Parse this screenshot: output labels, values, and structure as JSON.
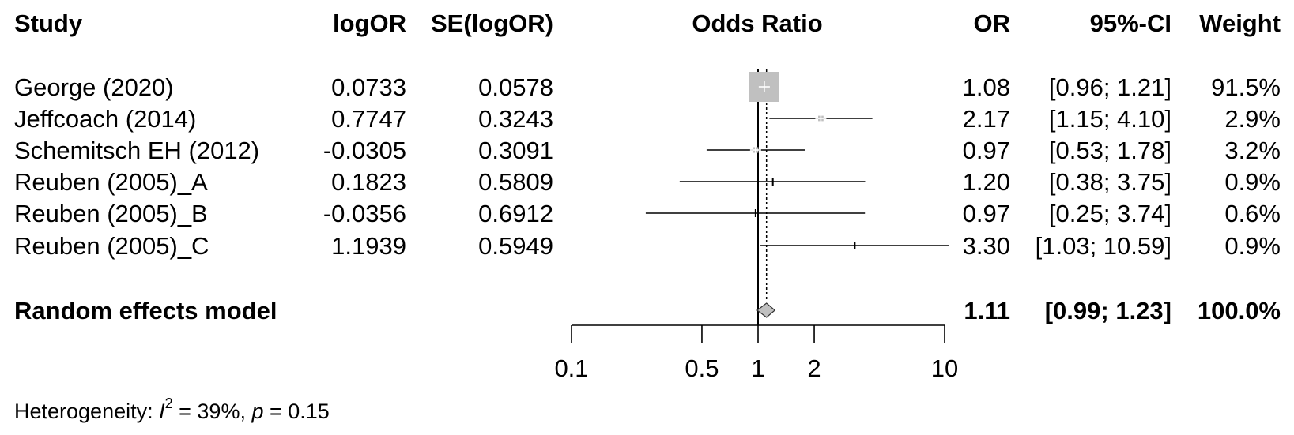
{
  "chart_data": {
    "type": "forest",
    "headers": {
      "study": "Study",
      "logor": "logOR",
      "se": "SE(logOR)",
      "plot": "Odds Ratio",
      "or": "OR",
      "ci": "95%-CI",
      "weight": "Weight"
    },
    "studies": [
      {
        "name": "George (2020)",
        "logor": "0.0733",
        "se": "0.0578",
        "or": "1.08",
        "ci": "[0.96;  1.21]",
        "weight": "91.5%",
        "or_value": 1.08,
        "lower": 0.96,
        "upper": 1.21,
        "weight_value": 91.5
      },
      {
        "name": "Jeffcoach (2014)",
        "logor": "0.7747",
        "se": "0.3243",
        "or": "2.17",
        "ci": "[1.15;  4.10]",
        "weight": "2.9%",
        "or_value": 2.17,
        "lower": 1.15,
        "upper": 4.1,
        "weight_value": 2.9
      },
      {
        "name": "Schemitsch EH (2012)",
        "logor": "-0.0305",
        "se": "0.3091",
        "or": "0.97",
        "ci": "[0.53;  1.78]",
        "weight": "3.2%",
        "or_value": 0.97,
        "lower": 0.53,
        "upper": 1.78,
        "weight_value": 3.2
      },
      {
        "name": "Reuben (2005)_A",
        "logor": "0.1823",
        "se": "0.5809",
        "or": "1.20",
        "ci": "[0.38;  3.75]",
        "weight": "0.9%",
        "or_value": 1.2,
        "lower": 0.38,
        "upper": 3.75,
        "weight_value": 0.9
      },
      {
        "name": "Reuben (2005)_B",
        "logor": "-0.0356",
        "se": "0.6912",
        "or": "0.97",
        "ci": "[0.25;  3.74]",
        "weight": "0.6%",
        "or_value": 0.97,
        "lower": 0.25,
        "upper": 3.74,
        "weight_value": 0.6
      },
      {
        "name": "Reuben (2005)_C",
        "logor": "1.1939",
        "se": "0.5949",
        "or": "3.30",
        "ci": "[1.03; 10.59]",
        "weight": "0.9%",
        "or_value": 3.3,
        "lower": 1.03,
        "upper": 10.59,
        "weight_value": 0.9
      }
    ],
    "summary": {
      "name": "Random effects model",
      "or": "1.11",
      "ci": "[0.99;  1.23]",
      "weight": "100.0%",
      "or_value": 1.11,
      "lower": 0.99,
      "upper": 1.23
    },
    "x_axis": {
      "scale": "log",
      "ticks": [
        0.1,
        0.5,
        1,
        2,
        10
      ],
      "tick_labels": [
        "0.1",
        "0.5",
        "1",
        "2",
        "10"
      ],
      "xlim": [
        0.1,
        10
      ]
    },
    "reference_line": 1,
    "heterogeneity": {
      "label": "Heterogeneity: ",
      "i2_symbol": "I",
      "i2_sup": "2",
      "i2_value": " = 39%, ",
      "p_symbol": "p",
      "p_value": " = 0.15"
    },
    "colors": {
      "square": "#c0c0c0",
      "diamond": "#c0c0c0",
      "line": "#000000"
    }
  }
}
